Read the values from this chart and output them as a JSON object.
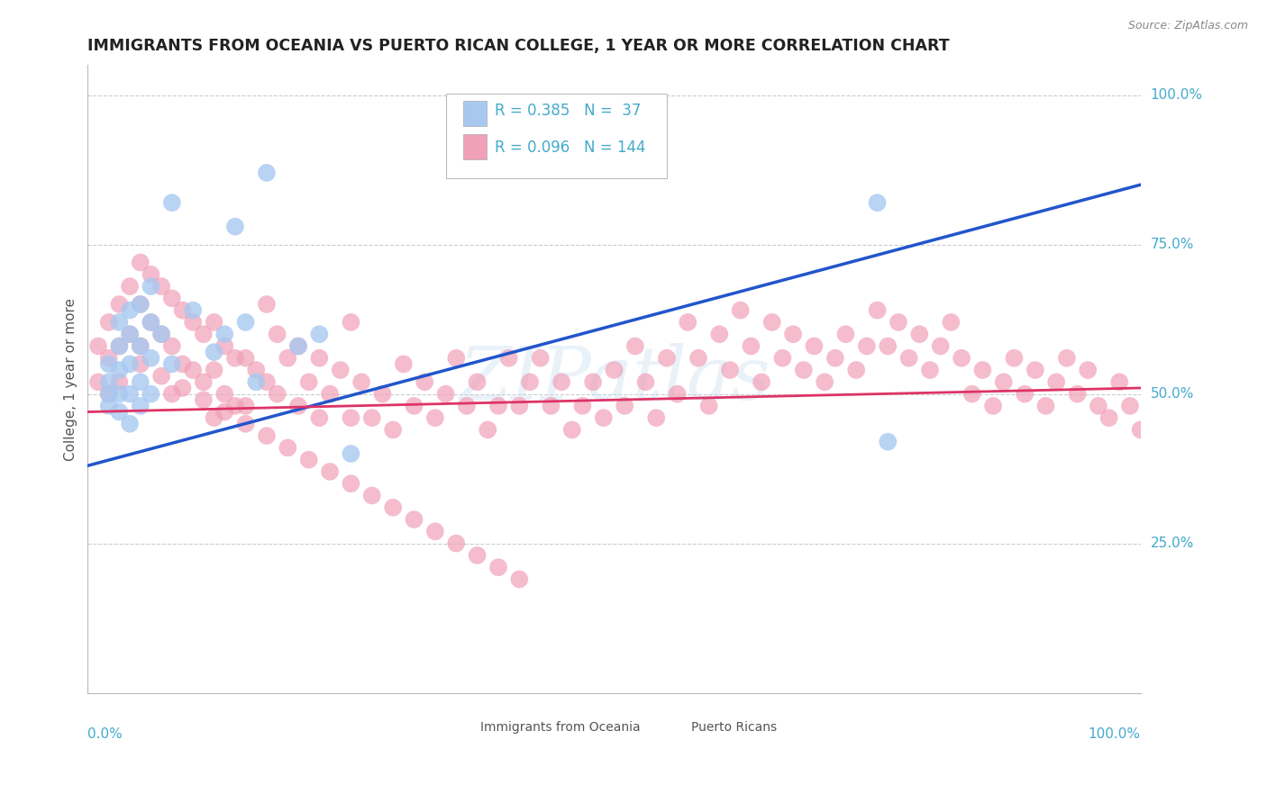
{
  "title": "IMMIGRANTS FROM OCEANIA VS PUERTO RICAN COLLEGE, 1 YEAR OR MORE CORRELATION CHART",
  "source_text": "Source: ZipAtlas.com",
  "ylabel": "College, 1 year or more",
  "watermark": "ZIPatlas",
  "legend_blue_r": "R = 0.385",
  "legend_blue_n": "N =  37",
  "legend_pink_r": "R = 0.096",
  "legend_pink_n": "N = 144",
  "blue_color": "#A8C8F0",
  "pink_color": "#F0A0B8",
  "trend_blue_color": "#2255CC",
  "trend_pink_color": "#DD3366",
  "background_color": "#FFFFFF",
  "grid_color": "#CCCCCC",
  "tick_color": "#44AACC",
  "title_color": "#222222",
  "label_color": "#555555",
  "blue_x": [
    0.02,
    0.02,
    0.02,
    0.02,
    0.03,
    0.03,
    0.03,
    0.03,
    0.03,
    0.04,
    0.04,
    0.04,
    0.04,
    0.04,
    0.05,
    0.05,
    0.05,
    0.05,
    0.06,
    0.06,
    0.06,
    0.06,
    0.07,
    0.08,
    0.08,
    0.1,
    0.12,
    0.13,
    0.14,
    0.15,
    0.16,
    0.17,
    0.2,
    0.22,
    0.25,
    0.75,
    0.76
  ],
  "blue_y": [
    0.55,
    0.52,
    0.5,
    0.48,
    0.62,
    0.58,
    0.54,
    0.5,
    0.47,
    0.64,
    0.6,
    0.55,
    0.5,
    0.45,
    0.65,
    0.58,
    0.52,
    0.48,
    0.68,
    0.62,
    0.56,
    0.5,
    0.6,
    0.82,
    0.55,
    0.64,
    0.57,
    0.6,
    0.78,
    0.62,
    0.52,
    0.87,
    0.58,
    0.6,
    0.4,
    0.82,
    0.42
  ],
  "pink_x": [
    0.01,
    0.01,
    0.02,
    0.02,
    0.02,
    0.03,
    0.03,
    0.03,
    0.04,
    0.04,
    0.05,
    0.05,
    0.05,
    0.06,
    0.06,
    0.07,
    0.07,
    0.08,
    0.08,
    0.08,
    0.09,
    0.09,
    0.1,
    0.1,
    0.11,
    0.11,
    0.12,
    0.12,
    0.12,
    0.13,
    0.13,
    0.14,
    0.14,
    0.15,
    0.15,
    0.16,
    0.17,
    0.17,
    0.18,
    0.18,
    0.19,
    0.2,
    0.2,
    0.21,
    0.22,
    0.22,
    0.23,
    0.24,
    0.25,
    0.25,
    0.26,
    0.27,
    0.28,
    0.29,
    0.3,
    0.31,
    0.32,
    0.33,
    0.34,
    0.35,
    0.36,
    0.37,
    0.38,
    0.39,
    0.4,
    0.41,
    0.42,
    0.43,
    0.44,
    0.45,
    0.46,
    0.47,
    0.48,
    0.49,
    0.5,
    0.51,
    0.52,
    0.53,
    0.54,
    0.55,
    0.56,
    0.57,
    0.58,
    0.59,
    0.6,
    0.61,
    0.62,
    0.63,
    0.64,
    0.65,
    0.66,
    0.67,
    0.68,
    0.69,
    0.7,
    0.71,
    0.72,
    0.73,
    0.74,
    0.75,
    0.76,
    0.77,
    0.78,
    0.79,
    0.8,
    0.81,
    0.82,
    0.83,
    0.84,
    0.85,
    0.86,
    0.87,
    0.88,
    0.89,
    0.9,
    0.91,
    0.92,
    0.93,
    0.94,
    0.95,
    0.96,
    0.97,
    0.98,
    0.99,
    1.0,
    0.05,
    0.07,
    0.09,
    0.11,
    0.13,
    0.15,
    0.17,
    0.19,
    0.21,
    0.23,
    0.25,
    0.27,
    0.29,
    0.31,
    0.33,
    0.35,
    0.37,
    0.39,
    0.41
  ],
  "pink_y": [
    0.58,
    0.52,
    0.62,
    0.56,
    0.5,
    0.65,
    0.58,
    0.52,
    0.68,
    0.6,
    0.72,
    0.65,
    0.58,
    0.7,
    0.62,
    0.68,
    0.6,
    0.66,
    0.58,
    0.5,
    0.64,
    0.55,
    0.62,
    0.54,
    0.6,
    0.52,
    0.62,
    0.54,
    0.46,
    0.58,
    0.5,
    0.56,
    0.48,
    0.56,
    0.48,
    0.54,
    0.65,
    0.52,
    0.6,
    0.5,
    0.56,
    0.58,
    0.48,
    0.52,
    0.56,
    0.46,
    0.5,
    0.54,
    0.62,
    0.46,
    0.52,
    0.46,
    0.5,
    0.44,
    0.55,
    0.48,
    0.52,
    0.46,
    0.5,
    0.56,
    0.48,
    0.52,
    0.44,
    0.48,
    0.56,
    0.48,
    0.52,
    0.56,
    0.48,
    0.52,
    0.44,
    0.48,
    0.52,
    0.46,
    0.54,
    0.48,
    0.58,
    0.52,
    0.46,
    0.56,
    0.5,
    0.62,
    0.56,
    0.48,
    0.6,
    0.54,
    0.64,
    0.58,
    0.52,
    0.62,
    0.56,
    0.6,
    0.54,
    0.58,
    0.52,
    0.56,
    0.6,
    0.54,
    0.58,
    0.64,
    0.58,
    0.62,
    0.56,
    0.6,
    0.54,
    0.58,
    0.62,
    0.56,
    0.5,
    0.54,
    0.48,
    0.52,
    0.56,
    0.5,
    0.54,
    0.48,
    0.52,
    0.56,
    0.5,
    0.54,
    0.48,
    0.46,
    0.52,
    0.48,
    0.44,
    0.55,
    0.53,
    0.51,
    0.49,
    0.47,
    0.45,
    0.43,
    0.41,
    0.39,
    0.37,
    0.35,
    0.33,
    0.31,
    0.29,
    0.27,
    0.25,
    0.23,
    0.21,
    0.19
  ]
}
